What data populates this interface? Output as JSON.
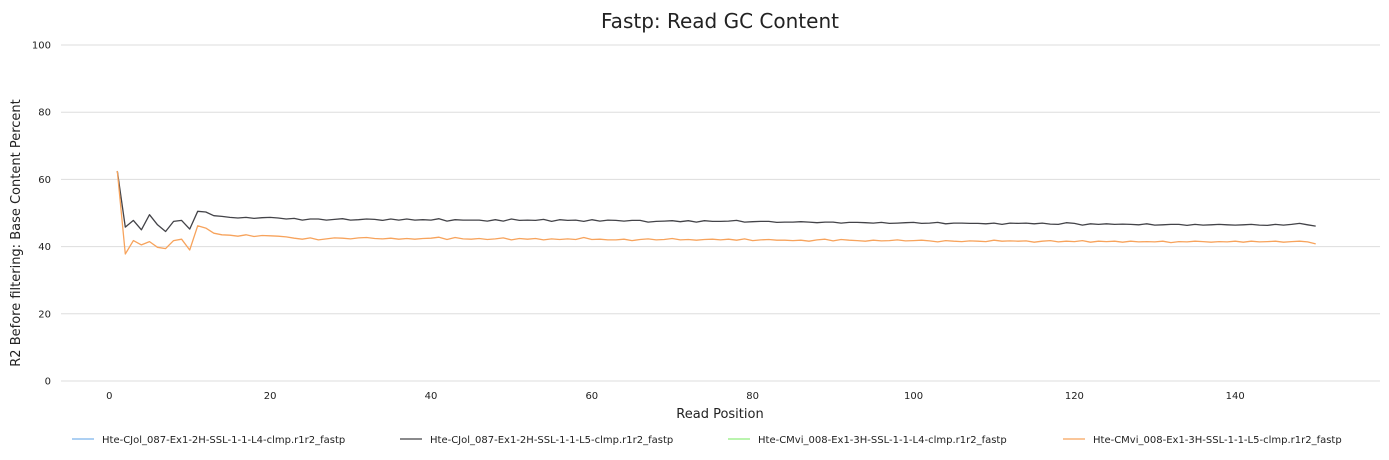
{
  "chart_data": {
    "type": "line",
    "title": "Fastp: Read GC Content",
    "xlabel": "Read Position",
    "ylabel": "R2 Before filtering: Base Content Percent",
    "xlim": [
      -6,
      158
    ],
    "ylim": [
      0,
      100
    ],
    "x_ticks": [
      0,
      20,
      40,
      60,
      80,
      100,
      120,
      140
    ],
    "y_ticks": [
      0,
      20,
      40,
      60,
      80,
      100
    ],
    "grid": true,
    "legend_position": "bottom",
    "series": [
      {
        "name": "Hte-CJol_087-Ex1-2H-SSL-1-1-L4-clmp.r1r2_fastp",
        "color": "#7cb5ec",
        "x": [],
        "values": []
      },
      {
        "name": "Hte-CJol_087-Ex1-2H-SSL-1-1-L5-clmp.r1r2_fastp",
        "color": "#434348",
        "x": [
          1,
          2,
          3,
          4,
          5,
          6,
          7,
          8,
          9,
          10,
          11,
          12,
          13,
          14,
          15,
          16,
          17,
          18,
          19,
          20,
          21,
          22,
          23,
          24,
          25,
          26,
          27,
          28,
          29,
          30,
          31,
          32,
          33,
          34,
          35,
          36,
          37,
          38,
          39,
          40,
          41,
          42,
          43,
          44,
          45,
          46,
          47,
          48,
          49,
          50,
          51,
          52,
          53,
          54,
          55,
          56,
          57,
          58,
          59,
          60,
          61,
          62,
          63,
          64,
          65,
          66,
          67,
          68,
          69,
          70,
          71,
          72,
          73,
          74,
          75,
          76,
          77,
          78,
          79,
          80,
          81,
          82,
          83,
          84,
          85,
          86,
          87,
          88,
          89,
          90,
          91,
          92,
          93,
          94,
          95,
          96,
          97,
          98,
          99,
          100,
          101,
          102,
          103,
          104,
          105,
          106,
          107,
          108,
          109,
          110,
          111,
          112,
          113,
          114,
          115,
          116,
          117,
          118,
          119,
          120,
          121,
          122,
          123,
          124,
          125,
          126,
          127,
          128,
          129,
          130,
          131,
          132,
          133,
          134,
          135,
          136,
          137,
          138,
          139,
          140,
          141,
          142,
          143,
          144,
          145,
          146,
          147,
          148,
          149,
          150
        ],
        "values": [
          62.5,
          45.8,
          47.8,
          45.0,
          49.5,
          46.5,
          44.5,
          47.5,
          47.8,
          45.2,
          50.5,
          50.3,
          49.2,
          49.0,
          48.7,
          48.5,
          48.7,
          48.4,
          48.6,
          48.7,
          48.5,
          48.2,
          48.4,
          47.9,
          48.2,
          48.2,
          47.9,
          48.1,
          48.3,
          47.9,
          48.0,
          48.2,
          48.1,
          47.8,
          48.2,
          47.9,
          48.2,
          47.9,
          48.0,
          47.9,
          48.3,
          47.6,
          48.0,
          47.9,
          47.9,
          47.9,
          47.6,
          48.0,
          47.6,
          48.2,
          47.8,
          47.9,
          47.8,
          48.1,
          47.5,
          48.0,
          47.8,
          47.9,
          47.5,
          48.0,
          47.6,
          47.9,
          47.8,
          47.6,
          47.8,
          47.8,
          47.3,
          47.5,
          47.6,
          47.7,
          47.4,
          47.7,
          47.3,
          47.7,
          47.5,
          47.5,
          47.6,
          47.8,
          47.3,
          47.4,
          47.5,
          47.5,
          47.2,
          47.3,
          47.3,
          47.4,
          47.3,
          47.1,
          47.3,
          47.3,
          47.0,
          47.2,
          47.2,
          47.1,
          47.0,
          47.2,
          46.9,
          47.0,
          47.1,
          47.2,
          46.9,
          47.0,
          47.2,
          46.8,
          47.0,
          47.0,
          46.9,
          46.9,
          46.8,
          47.0,
          46.6,
          47.0,
          46.9,
          47.0,
          46.8,
          47.0,
          46.7,
          46.6,
          47.1,
          46.9,
          46.4,
          46.8,
          46.6,
          46.8,
          46.6,
          46.7,
          46.6,
          46.5,
          46.8,
          46.4,
          46.5,
          46.6,
          46.6,
          46.3,
          46.6,
          46.4,
          46.5,
          46.6,
          46.5,
          46.4,
          46.5,
          46.6,
          46.4,
          46.3,
          46.6,
          46.4,
          46.6,
          46.9,
          46.5,
          46.1
        ]
      },
      {
        "name": "Hte-CMvi_008-Ex1-3H-SSL-1-1-L4-clmp.r1r2_fastp",
        "color": "#90ed7d",
        "x": [],
        "values": []
      },
      {
        "name": "Hte-CMvi_008-Ex1-3H-SSL-1-1-L5-clmp.r1r2_fastp",
        "color": "#f7a35c",
        "x": [
          1,
          2,
          3,
          4,
          5,
          6,
          7,
          8,
          9,
          10,
          11,
          12,
          13,
          14,
          15,
          16,
          17,
          18,
          19,
          20,
          21,
          22,
          23,
          24,
          25,
          26,
          27,
          28,
          29,
          30,
          31,
          32,
          33,
          34,
          35,
          36,
          37,
          38,
          39,
          40,
          41,
          42,
          43,
          44,
          45,
          46,
          47,
          48,
          49,
          50,
          51,
          52,
          53,
          54,
          55,
          56,
          57,
          58,
          59,
          60,
          61,
          62,
          63,
          64,
          65,
          66,
          67,
          68,
          69,
          70,
          71,
          72,
          73,
          74,
          75,
          76,
          77,
          78,
          79,
          80,
          81,
          82,
          83,
          84,
          85,
          86,
          87,
          88,
          89,
          90,
          91,
          92,
          93,
          94,
          95,
          96,
          97,
          98,
          99,
          100,
          101,
          102,
          103,
          104,
          105,
          106,
          107,
          108,
          109,
          110,
          111,
          112,
          113,
          114,
          115,
          116,
          117,
          118,
          119,
          120,
          121,
          122,
          123,
          124,
          125,
          126,
          127,
          128,
          129,
          130,
          131,
          132,
          133,
          134,
          135,
          136,
          137,
          138,
          139,
          140,
          141,
          142,
          143,
          144,
          145,
          146,
          147,
          148,
          149,
          150
        ],
        "values": [
          62.5,
          37.8,
          41.8,
          40.5,
          41.5,
          39.8,
          39.4,
          41.8,
          42.2,
          39.0,
          46.2,
          45.5,
          44.0,
          43.5,
          43.4,
          43.1,
          43.5,
          43.0,
          43.3,
          43.2,
          43.1,
          42.9,
          42.5,
          42.2,
          42.6,
          42.0,
          42.3,
          42.6,
          42.5,
          42.3,
          42.6,
          42.7,
          42.4,
          42.3,
          42.5,
          42.2,
          42.4,
          42.2,
          42.4,
          42.5,
          42.8,
          42.1,
          42.7,
          42.3,
          42.2,
          42.4,
          42.1,
          42.3,
          42.6,
          42.0,
          42.4,
          42.2,
          42.4,
          42.0,
          42.3,
          42.1,
          42.3,
          42.1,
          42.7,
          42.1,
          42.2,
          42.0,
          42.0,
          42.2,
          41.8,
          42.1,
          42.3,
          42.0,
          42.1,
          42.4,
          42.0,
          42.1,
          41.9,
          42.1,
          42.2,
          42.0,
          42.2,
          41.9,
          42.3,
          41.8,
          42.0,
          42.1,
          41.9,
          41.9,
          41.8,
          41.9,
          41.6,
          42.0,
          42.2,
          41.7,
          42.1,
          41.9,
          41.8,
          41.6,
          41.9,
          41.7,
          41.8,
          42.0,
          41.7,
          41.8,
          41.9,
          41.7,
          41.4,
          41.8,
          41.6,
          41.5,
          41.7,
          41.6,
          41.5,
          41.9,
          41.6,
          41.7,
          41.6,
          41.7,
          41.3,
          41.6,
          41.8,
          41.4,
          41.6,
          41.5,
          41.8,
          41.3,
          41.6,
          41.5,
          41.6,
          41.3,
          41.6,
          41.4,
          41.5,
          41.4,
          41.6,
          41.2,
          41.5,
          41.4,
          41.6,
          41.5,
          41.3,
          41.5,
          41.4,
          41.6,
          41.3,
          41.6,
          41.4,
          41.5,
          41.6,
          41.3,
          41.5,
          41.6,
          41.4,
          40.8
        ]
      }
    ]
  }
}
